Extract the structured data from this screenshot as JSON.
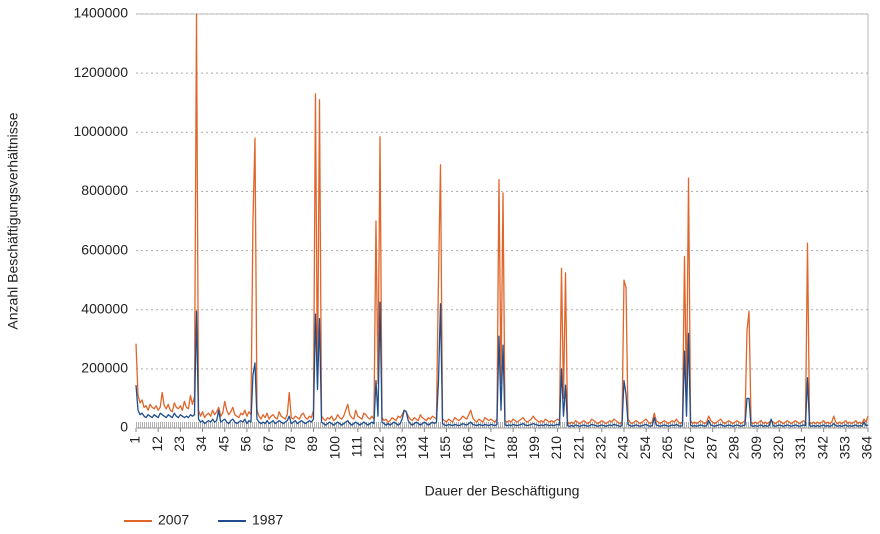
{
  "chart_data": {
    "type": "line",
    "xlabel": "Dauer der Beschäftigung",
    "ylabel": "Anzahl Beschäftigungsverhältnisse",
    "xlim": [
      1,
      364
    ],
    "xticks": [
      1,
      12,
      23,
      34,
      45,
      56,
      67,
      78,
      89,
      100,
      111,
      122,
      133,
      144,
      155,
      166,
      177,
      188,
      199,
      210,
      221,
      232,
      243,
      254,
      265,
      276,
      287,
      298,
      309,
      320,
      331,
      342,
      353,
      364
    ],
    "ylim": [
      0,
      1400000
    ],
    "yticks": [
      0,
      200000,
      400000,
      600000,
      800000,
      1000000,
      1200000,
      1400000
    ],
    "grid": true,
    "x": [
      1,
      2,
      3,
      4,
      5,
      6,
      7,
      8,
      9,
      10,
      11,
      12,
      13,
      14,
      15,
      16,
      17,
      18,
      19,
      20,
      21,
      22,
      23,
      24,
      25,
      26,
      27,
      28,
      29,
      30,
      31,
      32,
      33,
      34,
      35,
      36,
      37,
      38,
      39,
      40,
      41,
      42,
      43,
      44,
      45,
      46,
      47,
      48,
      49,
      50,
      51,
      52,
      53,
      54,
      55,
      56,
      57,
      58,
      59,
      60,
      61,
      62,
      63,
      64,
      65,
      66,
      67,
      68,
      69,
      70,
      71,
      72,
      73,
      74,
      75,
      76,
      77,
      78,
      79,
      80,
      81,
      82,
      83,
      84,
      85,
      86,
      87,
      88,
      89,
      90,
      91,
      92,
      93,
      94,
      95,
      96,
      97,
      98,
      99,
      100,
      101,
      102,
      103,
      104,
      105,
      106,
      107,
      108,
      109,
      110,
      111,
      112,
      113,
      114,
      115,
      116,
      117,
      118,
      119,
      120,
      121,
      122,
      123,
      124,
      125,
      126,
      127,
      128,
      129,
      130,
      131,
      132,
      133,
      134,
      135,
      136,
      137,
      138,
      139,
      140,
      141,
      142,
      143,
      144,
      145,
      146,
      147,
      148,
      149,
      150,
      151,
      152,
      153,
      154,
      155,
      156,
      157,
      158,
      159,
      160,
      161,
      162,
      163,
      164,
      165,
      166,
      167,
      168,
      169,
      170,
      171,
      172,
      173,
      174,
      175,
      176,
      177,
      178,
      179,
      180,
      181,
      182,
      183,
      184,
      185,
      186,
      187,
      188,
      189,
      190,
      191,
      192,
      193,
      194,
      195,
      196,
      197,
      198,
      199,
      200,
      201,
      202,
      203,
      204,
      205,
      206,
      207,
      208,
      209,
      210,
      211,
      212,
      213,
      214,
      215,
      216,
      217,
      218,
      219,
      220,
      221,
      222,
      223,
      224,
      225,
      226,
      227,
      228,
      229,
      230,
      231,
      232,
      233,
      234,
      235,
      236,
      237,
      238,
      239,
      240,
      241,
      242,
      243,
      244,
      245,
      246,
      247,
      248,
      249,
      250,
      251,
      252,
      253,
      254,
      255,
      256,
      257,
      258,
      259,
      260,
      261,
      262,
      263,
      264,
      265,
      266,
      267,
      268,
      269,
      270,
      271,
      272,
      273,
      274,
      275,
      276,
      277,
      278,
      279,
      280,
      281,
      282,
      283,
      284,
      285,
      286,
      287,
      288,
      289,
      290,
      291,
      292,
      293,
      294,
      295,
      296,
      297,
      298,
      299,
      300,
      301,
      302,
      303,
      304,
      305,
      306,
      307,
      308,
      309,
      310,
      311,
      312,
      313,
      314,
      315,
      316,
      317,
      318,
      319,
      320,
      321,
      322,
      323,
      324,
      325,
      326,
      327,
      328,
      329,
      330,
      331,
      332,
      333,
      334,
      335,
      336,
      337,
      338,
      339,
      340,
      341,
      342,
      343,
      344,
      345,
      346,
      347,
      348,
      349,
      350,
      351,
      352,
      353,
      354,
      355,
      356,
      357,
      358,
      359,
      360,
      361,
      362,
      363,
      364
    ],
    "series": [
      {
        "name": "2007",
        "color": "#e0652a",
        "values": [
          285000,
          110000,
          85000,
          95000,
          70000,
          75000,
          60000,
          80000,
          70000,
          65000,
          75000,
          60000,
          70000,
          120000,
          75000,
          65000,
          80000,
          60000,
          55000,
          85000,
          70000,
          65000,
          75000,
          60000,
          90000,
          70000,
          65000,
          110000,
          80000,
          105000,
          1400000,
          60000,
          40000,
          55000,
          35000,
          45000,
          50000,
          40000,
          60000,
          45000,
          55000,
          70000,
          40000,
          50000,
          90000,
          60000,
          45000,
          55000,
          70000,
          45000,
          40000,
          35000,
          50000,
          45000,
          60000,
          40000,
          55000,
          45000,
          700000,
          980000,
          60000,
          40000,
          30000,
          45000,
          35000,
          50000,
          30000,
          40000,
          45000,
          35000,
          30000,
          55000,
          40000,
          35000,
          30000,
          45000,
          120000,
          35000,
          30000,
          40000,
          35000,
          30000,
          45000,
          50000,
          35000,
          30000,
          40000,
          35000,
          60000,
          1130000,
          150000,
          1110000,
          40000,
          30000,
          25000,
          35000,
          30000,
          40000,
          25000,
          30000,
          45000,
          35000,
          30000,
          40000,
          60000,
          80000,
          45000,
          35000,
          30000,
          60000,
          40000,
          35000,
          30000,
          50000,
          45000,
          35000,
          30000,
          40000,
          30000,
          700000,
          150000,
          985000,
          35000,
          25000,
          30000,
          20000,
          25000,
          35000,
          30000,
          25000,
          40000,
          35000,
          45000,
          60000,
          55000,
          40000,
          30000,
          25000,
          35000,
          30000,
          25000,
          45000,
          35000,
          30000,
          25000,
          35000,
          30000,
          40000,
          35000,
          30000,
          505000,
          890000,
          30000,
          25000,
          20000,
          30000,
          25000,
          20000,
          35000,
          30000,
          25000,
          30000,
          40000,
          35000,
          30000,
          45000,
          60000,
          35000,
          25000,
          20000,
          30000,
          25000,
          20000,
          35000,
          30000,
          25000,
          30000,
          25000,
          20000,
          30000,
          840000,
          150000,
          795000,
          25000,
          20000,
          25000,
          20000,
          30000,
          25000,
          20000,
          25000,
          30000,
          35000,
          25000,
          20000,
          25000,
          30000,
          40000,
          30000,
          25000,
          20000,
          25000,
          20000,
          30000,
          25000,
          20000,
          25000,
          20000,
          25000,
          30000,
          25000,
          540000,
          100000,
          525000,
          20000,
          15000,
          20000,
          15000,
          25000,
          20000,
          15000,
          20000,
          25000,
          20000,
          15000,
          20000,
          30000,
          25000,
          20000,
          15000,
          20000,
          25000,
          20000,
          15000,
          20000,
          25000,
          20000,
          30000,
          25000,
          20000,
          15000,
          20000,
          500000,
          475000,
          30000,
          20000,
          15000,
          20000,
          25000,
          20000,
          15000,
          20000,
          25000,
          30000,
          20000,
          15000,
          20000,
          50000,
          25000,
          20000,
          15000,
          20000,
          25000,
          20000,
          15000,
          20000,
          25000,
          20000,
          30000,
          20000,
          15000,
          20000,
          580000,
          100000,
          845000,
          25000,
          15000,
          20000,
          15000,
          20000,
          25000,
          20000,
          15000,
          20000,
          40000,
          25000,
          20000,
          15000,
          20000,
          25000,
          30000,
          20000,
          15000,
          20000,
          25000,
          20000,
          15000,
          20000,
          25000,
          20000,
          15000,
          20000,
          25000,
          330000,
          395000,
          20000,
          15000,
          20000,
          15000,
          20000,
          25000,
          15000,
          20000,
          15000,
          20000,
          25000,
          20000,
          15000,
          20000,
          25000,
          20000,
          15000,
          20000,
          25000,
          20000,
          15000,
          20000,
          25000,
          20000,
          15000,
          20000,
          25000,
          20000,
          625000,
          20000,
          15000,
          20000,
          15000,
          20000,
          15000,
          20000,
          25000,
          15000,
          20000,
          15000,
          20000,
          40000,
          20000,
          15000,
          20000,
          15000,
          20000,
          25000,
          15000,
          20000,
          15000,
          20000,
          25000,
          15000,
          20000,
          15000,
          30000,
          20000,
          40000
        ]
      },
      {
        "name": "1987",
        "color": "#1f4e8c",
        "values": [
          145000,
          60000,
          45000,
          50000,
          40000,
          35000,
          45000,
          40000,
          35000,
          45000,
          40000,
          35000,
          50000,
          45000,
          40000,
          35000,
          45000,
          40000,
          35000,
          50000,
          40000,
          35000,
          45000,
          40000,
          35000,
          40000,
          35000,
          45000,
          40000,
          45000,
          395000,
          30000,
          20000,
          25000,
          15000,
          20000,
          25000,
          20000,
          30000,
          20000,
          25000,
          60000,
          20000,
          25000,
          30000,
          20000,
          15000,
          25000,
          30000,
          20000,
          15000,
          20000,
          25000,
          20000,
          30000,
          15000,
          25000,
          20000,
          180000,
          220000,
          30000,
          20000,
          15000,
          20000,
          15000,
          25000,
          15000,
          20000,
          25000,
          15000,
          20000,
          25000,
          20000,
          15000,
          20000,
          25000,
          40000,
          15000,
          20000,
          25000,
          15000,
          20000,
          25000,
          20000,
          15000,
          20000,
          25000,
          20000,
          30000,
          385000,
          130000,
          370000,
          20000,
          15000,
          10000,
          15000,
          20000,
          15000,
          10000,
          15000,
          20000,
          15000,
          10000,
          15000,
          20000,
          25000,
          15000,
          10000,
          15000,
          20000,
          15000,
          10000,
          15000,
          20000,
          15000,
          10000,
          15000,
          20000,
          15000,
          160000,
          40000,
          425000,
          20000,
          15000,
          10000,
          15000,
          10000,
          15000,
          20000,
          15000,
          10000,
          15000,
          30000,
          60000,
          55000,
          25000,
          15000,
          10000,
          15000,
          20000,
          15000,
          10000,
          15000,
          20000,
          15000,
          10000,
          15000,
          20000,
          15000,
          20000,
          160000,
          420000,
          15000,
          10000,
          8000,
          12000,
          10000,
          8000,
          12000,
          10000,
          8000,
          10000,
          15000,
          12000,
          10000,
          15000,
          20000,
          12000,
          10000,
          8000,
          12000,
          10000,
          8000,
          12000,
          10000,
          8000,
          12000,
          10000,
          8000,
          12000,
          310000,
          60000,
          280000,
          10000,
          8000,
          10000,
          8000,
          12000,
          10000,
          8000,
          10000,
          12000,
          15000,
          10000,
          8000,
          10000,
          12000,
          15000,
          12000,
          10000,
          8000,
          10000,
          8000,
          12000,
          10000,
          8000,
          10000,
          8000,
          10000,
          12000,
          10000,
          200000,
          40000,
          145000,
          8000,
          6000,
          8000,
          6000,
          10000,
          8000,
          6000,
          8000,
          10000,
          8000,
          6000,
          8000,
          12000,
          10000,
          8000,
          6000,
          8000,
          10000,
          8000,
          6000,
          8000,
          10000,
          8000,
          12000,
          10000,
          8000,
          6000,
          8000,
          160000,
          115000,
          12000,
          8000,
          6000,
          8000,
          10000,
          8000,
          6000,
          8000,
          10000,
          12000,
          8000,
          6000,
          8000,
          35000,
          10000,
          8000,
          6000,
          8000,
          10000,
          8000,
          6000,
          8000,
          10000,
          8000,
          12000,
          8000,
          6000,
          8000,
          260000,
          40000,
          320000,
          10000,
          6000,
          8000,
          6000,
          8000,
          10000,
          8000,
          6000,
          8000,
          25000,
          10000,
          8000,
          6000,
          8000,
          10000,
          12000,
          8000,
          6000,
          8000,
          10000,
          8000,
          6000,
          8000,
          10000,
          8000,
          6000,
          8000,
          10000,
          100000,
          100000,
          8000,
          6000,
          8000,
          6000,
          8000,
          10000,
          6000,
          8000,
          6000,
          8000,
          30000,
          8000,
          6000,
          8000,
          10000,
          8000,
          6000,
          8000,
          10000,
          8000,
          6000,
          8000,
          10000,
          8000,
          6000,
          8000,
          10000,
          8000,
          170000,
          8000,
          6000,
          8000,
          6000,
          8000,
          6000,
          8000,
          10000,
          6000,
          8000,
          6000,
          8000,
          15000,
          8000,
          6000,
          8000,
          6000,
          8000,
          10000,
          6000,
          8000,
          6000,
          8000,
          10000,
          6000,
          8000,
          6000,
          20000,
          8000,
          10000
        ]
      }
    ]
  }
}
